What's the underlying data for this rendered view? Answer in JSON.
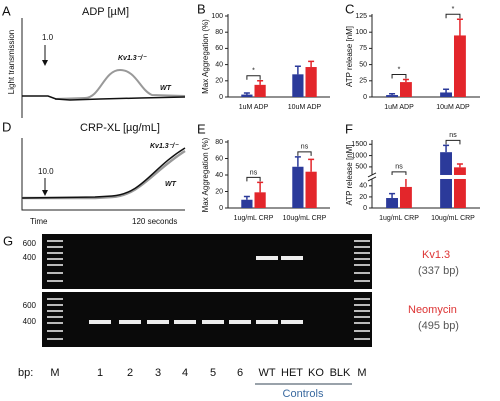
{
  "chart_data": [
    {
      "type": "bar",
      "panel": "B",
      "ylabel": "Max Aggregation (%)",
      "categories": [
        "1uM ADP",
        "10uM ADP"
      ],
      "series": [
        {
          "color": "#2b3a9a",
          "values": [
            3,
            28
          ],
          "errors": [
            2,
            10
          ]
        },
        {
          "color": "#e3262b",
          "values": [
            15,
            37
          ],
          "errors": [
            5,
            7
          ]
        }
      ],
      "significance": [
        "*",
        null
      ],
      "ylim": [
        0,
        100
      ],
      "yticks": [
        0,
        20,
        40,
        60,
        80,
        100
      ]
    },
    {
      "type": "bar",
      "panel": "C",
      "ylabel": "ATP release [nM]",
      "categories": [
        "1uM ADP",
        "10uM ADP"
      ],
      "series": [
        {
          "color": "#2b3a9a",
          "values": [
            3,
            7
          ],
          "errors": [
            2,
            5
          ]
        },
        {
          "color": "#e3262b",
          "values": [
            23,
            95
          ],
          "errors": [
            4,
            25
          ]
        }
      ],
      "significance": [
        "*",
        "*"
      ],
      "ylim": [
        0,
        125
      ],
      "yticks": [
        0,
        25,
        50,
        75,
        100,
        125
      ]
    },
    {
      "type": "bar",
      "panel": "E",
      "ylabel": "Max Aggregation (%)",
      "categories": [
        "1ug/mL CRP",
        "10ug/mL CRP"
      ],
      "series": [
        {
          "color": "#2b3a9a",
          "values": [
            10,
            50
          ],
          "errors": [
            4,
            12
          ]
        },
        {
          "color": "#e3262b",
          "values": [
            19,
            44
          ],
          "errors": [
            12,
            15
          ]
        }
      ],
      "significance": [
        "ns",
        "ns"
      ],
      "ylim": [
        0,
        80
      ],
      "yticks": [
        0,
        20,
        40,
        60,
        80
      ]
    },
    {
      "type": "bar",
      "panel": "F",
      "ylabel": "ATP release [nM]",
      "categories": [
        "1ug/mL CRP",
        "10ug/mL CRP"
      ],
      "series": [
        {
          "color": "#2b3a9a",
          "values": [
            18,
            1150
          ],
          "errors": [
            8,
            300
          ]
        },
        {
          "color": "#e3262b",
          "values": [
            38,
            480
          ],
          "errors": [
            20,
            150
          ]
        }
      ],
      "significance": [
        "ns",
        "ns"
      ],
      "ylim": [
        0,
        1600
      ],
      "ybreak": [
        50,
        200
      ],
      "yticks": [
        0,
        20,
        40,
        500,
        1000,
        1500
      ]
    }
  ],
  "traces": [
    {
      "panel": "A",
      "title": "ADP [µM]",
      "dose": "1.0",
      "ko": "Kv1.3⁻/⁻",
      "wt": "WT",
      "ylabel": "Light transmission"
    },
    {
      "panel": "D",
      "title": "CRP-XL [µg/mL]",
      "dose": "10.0",
      "ko": "Kv1.3⁻/⁻",
      "wt": "WT",
      "xstart": "Time",
      "xend": "120 seconds"
    }
  ],
  "gel": {
    "panel": "G",
    "lane_title": "bp:",
    "lanes": [
      "M",
      "1",
      "2",
      "3",
      "4",
      "5",
      "6",
      "WT",
      "HET",
      "KO",
      "BLK",
      "M"
    ],
    "group": "Controls",
    "top": {
      "markers": [
        "600",
        "400"
      ],
      "label": "Kv1.3",
      "size": "(337 bp)"
    },
    "bottom": {
      "markers": [
        "600",
        "400"
      ],
      "label": "Neomycin",
      "size": "(495 bp)"
    }
  }
}
